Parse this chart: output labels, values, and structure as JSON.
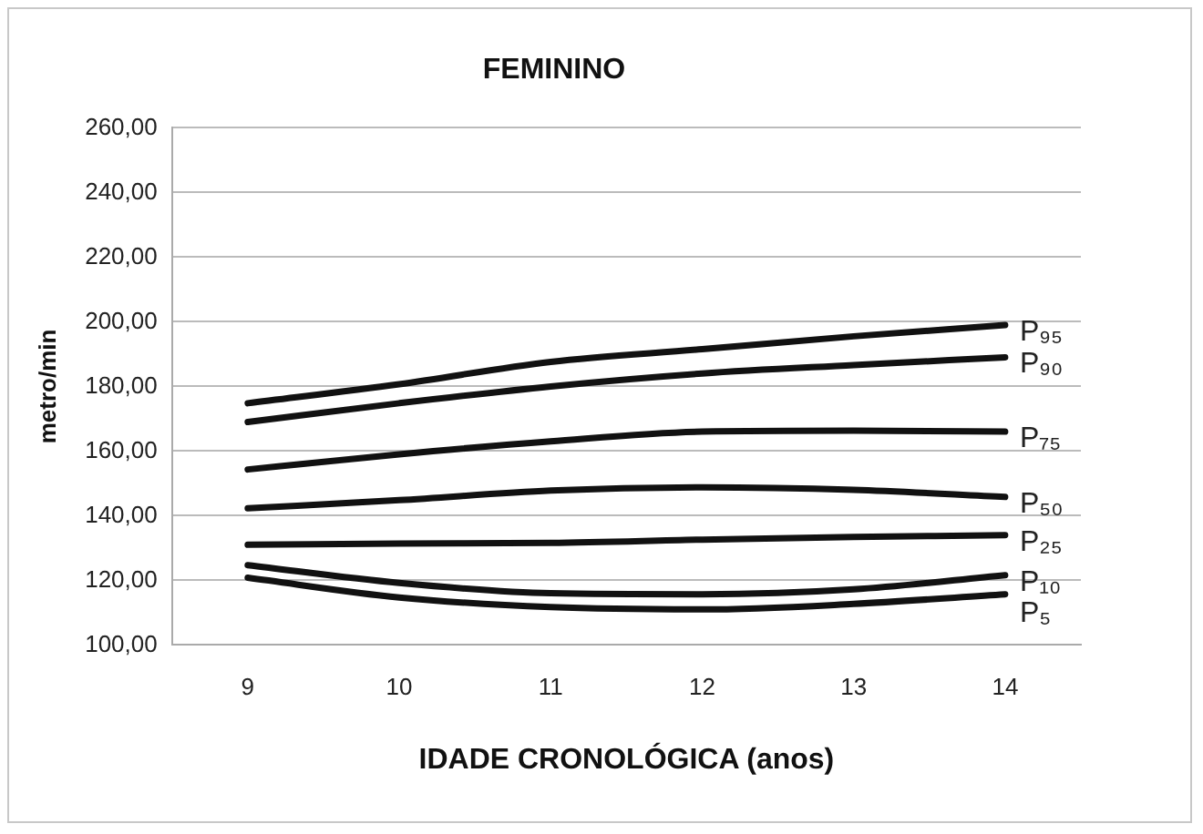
{
  "chart_data": {
    "type": "line",
    "title": "FEMININO",
    "xlabel": "IDADE CRONOLÓGICA (anos)",
    "ylabel": "metro/min",
    "categories": [
      "9",
      "10",
      "11",
      "12",
      "13",
      "14"
    ],
    "series": [
      {
        "name": "P₉₅",
        "color": "#111111",
        "values": [
          174.8,
          180.7,
          187.6,
          191.5,
          195.5,
          199
        ]
      },
      {
        "name": "P₉₀",
        "color": "#111111",
        "values": [
          169,
          174.8,
          180,
          184,
          186.6,
          189
        ]
      },
      {
        "name": "P₇₅",
        "color": "#111111",
        "values": [
          154.3,
          159,
          163,
          166,
          166.3,
          166
        ]
      },
      {
        "name": "P₅₀",
        "color": "#111111",
        "values": [
          142.3,
          144.8,
          147.8,
          148.8,
          148,
          145.8
        ]
      },
      {
        "name": "P₂₅",
        "color": "#111111",
        "values": [
          131,
          131.4,
          131.6,
          132.6,
          133.4,
          134
        ]
      },
      {
        "name": "P₁₀",
        "color": "#111111",
        "values": [
          124.7,
          119.2,
          116,
          115.7,
          117.2,
          121.6
        ]
      },
      {
        "name": "P₅",
        "color": "#111111",
        "values": [
          120.8,
          114.7,
          111.7,
          111,
          112.7,
          115.7
        ]
      }
    ],
    "ylim": [
      100,
      260
    ],
    "yticks": [
      {
        "value": 100,
        "label": "100,00"
      },
      {
        "value": 120,
        "label": "120,00"
      },
      {
        "value": 140,
        "label": "140,00"
      },
      {
        "value": 160,
        "label": "160,00"
      },
      {
        "value": 180,
        "label": "180,00"
      },
      {
        "value": 200,
        "label": "200,00"
      },
      {
        "value": 220,
        "label": "220,00"
      },
      {
        "value": 240,
        "label": "240,00"
      },
      {
        "value": 260,
        "label": "260,00"
      }
    ],
    "grid": "y",
    "legend": false,
    "marker": "none",
    "line_style": "solid"
  }
}
